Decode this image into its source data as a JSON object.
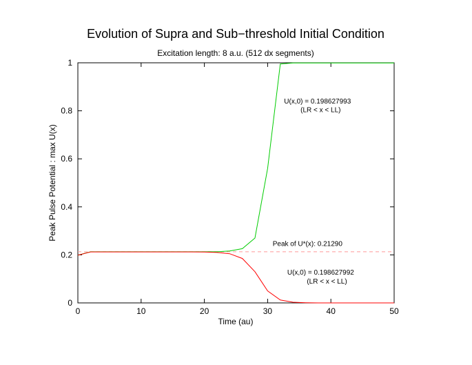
{
  "chart_data": {
    "type": "line",
    "title": "Evolution of Supra and Sub−threshold Initial Condition",
    "subtitle": "Excitation length: 8 a.u. (512 dx segments)",
    "xlabel": "Time (au)",
    "ylabel": "Peak Pulse Potential : max U(x)",
    "xlim": [
      0,
      50
    ],
    "ylim": [
      0,
      1
    ],
    "xticks": [
      "0",
      "10",
      "20",
      "30",
      "40",
      "50"
    ],
    "yticks": [
      "0",
      "0.2",
      "0.4",
      "0.6",
      "0.8",
      "1"
    ],
    "grid": false,
    "series": [
      {
        "color": "#00cc00",
        "x": [
          0,
          2,
          4,
          6,
          8,
          10,
          12,
          14,
          16,
          18,
          20,
          22,
          24,
          26,
          28,
          30,
          32,
          34,
          36,
          38,
          40,
          42,
          44,
          46,
          48,
          50
        ],
        "y": [
          0.1986,
          0.2129,
          0.2129,
          0.2129,
          0.2129,
          0.2129,
          0.2129,
          0.2129,
          0.2129,
          0.2129,
          0.2129,
          0.2129,
          0.216,
          0.226,
          0.27,
          0.56,
          0.995,
          0.999,
          0.999,
          0.999,
          0.999,
          0.999,
          0.999,
          0.999,
          0.999,
          0.999
        ]
      },
      {
        "color": "#ff0000",
        "x": [
          0,
          2,
          4,
          6,
          8,
          10,
          12,
          14,
          16,
          18,
          20,
          22,
          24,
          26,
          28,
          30,
          32,
          34,
          36,
          38,
          40,
          42,
          44,
          46,
          48,
          50
        ],
        "y": [
          0.1986,
          0.2125,
          0.2125,
          0.2125,
          0.2125,
          0.2125,
          0.2125,
          0.2125,
          0.2125,
          0.2125,
          0.2122,
          0.21,
          0.205,
          0.185,
          0.13,
          0.05,
          0.012,
          0.003,
          0.001,
          0.0,
          0.0,
          0.0,
          0.0,
          0.0,
          0.0,
          0.0
        ]
      }
    ],
    "reference_line": {
      "y": 0.2129,
      "color": "#ff9999",
      "style": "dashed",
      "x_range": [
        0,
        50
      ]
    },
    "annotations": [
      {
        "text": "U(x,0) = 0.198627993",
        "x": 32.6,
        "y": 0.83
      },
      {
        "text": "(LR < x < LL)",
        "x": 35.2,
        "y": 0.795
      },
      {
        "text": "Peak of U*(x): 0.21290",
        "x": 30.8,
        "y": 0.237
      },
      {
        "text": "U(x,0) = 0.198627992",
        "x": 33.1,
        "y": 0.118
      },
      {
        "text": "(LR < x < LL)",
        "x": 36.2,
        "y": 0.08
      }
    ]
  }
}
